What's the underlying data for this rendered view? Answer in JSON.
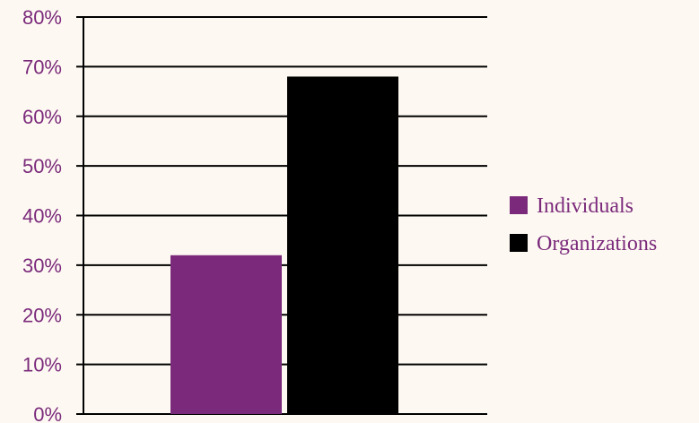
{
  "chart_data": {
    "type": "bar",
    "categories": [
      ""
    ],
    "series": [
      {
        "name": "Individuals",
        "values": [
          32
        ],
        "color": "#7b2a7b"
      },
      {
        "name": "Organizations",
        "values": [
          68
        ],
        "color": "#000000"
      }
    ],
    "title": "",
    "xlabel": "",
    "ylabel": "",
    "ylim": [
      0,
      80
    ],
    "unit": "%",
    "y_tick_labels": [
      "0%",
      "10%",
      "20%",
      "30%",
      "40%",
      "50%",
      "60%",
      "70%",
      "80%"
    ],
    "grid": true,
    "legend_placement": "right"
  },
  "colors": {
    "background": "#fdf9f2",
    "tick_text": "#7b2a7b",
    "legend_text": "#7b2a7b",
    "gridline": "#000000"
  }
}
